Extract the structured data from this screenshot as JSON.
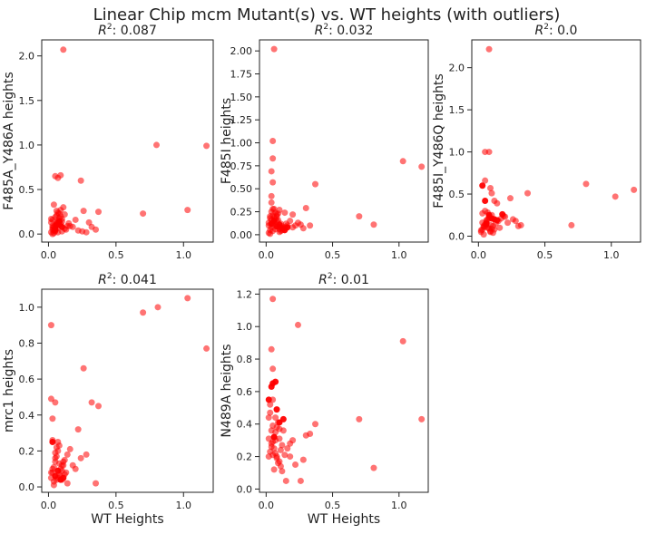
{
  "figure": {
    "suptitle": "Linear Chip mcm Mutant(s) vs. WT heights (with outliers)",
    "point_color": "#ff0000",
    "point_alpha": 0.55
  },
  "chart_data": [
    {
      "type": "scatter",
      "title_prefix": "R",
      "title_sup": "2",
      "title_value": ": 0.087",
      "xlabel": "",
      "ylabel": "F485A_Y486A heights",
      "xlim": [
        -0.05,
        1.22
      ],
      "ylim": [
        -0.09,
        2.18
      ],
      "xticks": [
        0.0,
        0.5,
        1.0
      ],
      "xtick_labels": [
        "0.0",
        "0.5",
        "1.0"
      ],
      "yticks": [
        0.0,
        0.5,
        1.0,
        1.5,
        2.0
      ],
      "ytick_labels": [
        "0.0",
        "0.5",
        "1.0",
        "1.5",
        "2.0"
      ],
      "x": [
        0.11,
        0.8,
        1.17,
        0.05,
        0.07,
        0.09,
        0.24,
        1.03,
        0.7,
        0.37,
        0.02,
        0.03,
        0.04,
        0.05,
        0.06,
        0.07,
        0.08,
        0.09,
        0.1,
        0.12,
        0.14,
        0.03,
        0.04,
        0.05,
        0.06,
        0.08,
        0.1,
        0.12,
        0.02,
        0.03,
        0.05,
        0.06,
        0.07,
        0.09,
        0.11,
        0.15,
        0.18,
        0.2,
        0.22,
        0.26,
        0.3,
        0.32,
        0.35,
        0.28,
        0.25,
        0.04,
        0.06,
        0.08,
        0.1,
        0.13,
        0.16,
        0.02,
        0.03,
        0.05,
        0.07,
        0.09,
        0.04,
        0.06,
        0.08,
        0.03,
        0.05,
        0.07
      ],
      "y": [
        2.07,
        1.0,
        0.99,
        0.65,
        0.63,
        0.66,
        0.6,
        0.27,
        0.23,
        0.25,
        0.02,
        0.05,
        0.08,
        0.1,
        0.12,
        0.15,
        0.18,
        0.2,
        0.03,
        0.06,
        0.09,
        0.0,
        0.04,
        0.07,
        0.11,
        0.14,
        0.17,
        0.22,
        0.13,
        0.16,
        0.19,
        0.21,
        0.24,
        0.27,
        0.3,
        0.12,
        0.08,
        0.16,
        0.04,
        0.26,
        0.13,
        0.08,
        0.05,
        0.02,
        0.03,
        0.01,
        0.06,
        0.1,
        0.14,
        0.05,
        0.09,
        0.17,
        0.07,
        0.03,
        0.02,
        0.11,
        0.33,
        0.26,
        0.23,
        0.09,
        0.04,
        0.13
      ],
      "dark_x": [
        0.05,
        0.06,
        0.08,
        0.1
      ],
      "dark_y": [
        0.05,
        0.1,
        0.14,
        0.08
      ]
    },
    {
      "type": "scatter",
      "title_prefix": "R",
      "title_sup": "2",
      "title_value": ": 0.032",
      "xlabel": "",
      "ylabel": "F485I heights",
      "xlim": [
        -0.05,
        1.22
      ],
      "ylim": [
        -0.08,
        2.12
      ],
      "xticks": [
        0.0,
        0.5,
        1.0
      ],
      "xtick_labels": [
        "0.0",
        "0.5",
        "1.0"
      ],
      "yticks": [
        0.0,
        0.25,
        0.5,
        0.75,
        1.0,
        1.25,
        1.5,
        1.75,
        2.0
      ],
      "ytick_labels": [
        "0.00",
        "0.25",
        "0.50",
        "0.75",
        "1.00",
        "1.25",
        "1.50",
        "1.75",
        "2.00"
      ],
      "x": [
        0.06,
        0.05,
        0.05,
        0.04,
        0.05,
        0.04,
        0.04,
        1.03,
        1.17,
        0.37,
        0.7,
        0.81,
        0.05,
        0.1,
        0.14,
        0.24,
        0.3,
        0.2,
        0.02,
        0.03,
        0.04,
        0.05,
        0.06,
        0.07,
        0.08,
        0.09,
        0.1,
        0.12,
        0.15,
        0.18,
        0.2,
        0.22,
        0.26,
        0.28,
        0.33,
        0.03,
        0.05,
        0.07,
        0.09,
        0.11,
        0.13,
        0.16,
        0.02,
        0.04,
        0.06,
        0.08,
        0.1,
        0.12,
        0.14,
        0.03,
        0.05,
        0.07,
        0.09,
        0.11,
        0.04,
        0.06,
        0.08,
        0.02,
        0.03
      ],
      "y": [
        2.02,
        1.02,
        0.83,
        0.69,
        0.57,
        0.42,
        0.35,
        0.8,
        0.74,
        0.55,
        0.2,
        0.11,
        0.28,
        0.27,
        0.24,
        0.13,
        0.29,
        0.22,
        0.02,
        0.05,
        0.08,
        0.11,
        0.14,
        0.17,
        0.2,
        0.23,
        0.06,
        0.09,
        0.12,
        0.15,
        0.08,
        0.1,
        0.11,
        0.07,
        0.1,
        0.18,
        0.21,
        0.24,
        0.16,
        0.04,
        0.07,
        0.1,
        0.13,
        0.16,
        0.19,
        0.22,
        0.03,
        0.05,
        0.08,
        0.01,
        0.04,
        0.06,
        0.09,
        0.12,
        0.25,
        0.28,
        0.15,
        0.1,
        0.2
      ],
      "dark_x": [
        0.04,
        0.06,
        0.08,
        0.1,
        0.12,
        0.14,
        0.16
      ],
      "dark_y": [
        0.12,
        0.15,
        0.09,
        0.11,
        0.07,
        0.05,
        0.08
      ]
    },
    {
      "type": "scatter",
      "title_prefix": "R",
      "title_sup": "2",
      "title_value": ": 0.0",
      "xlabel": "",
      "ylabel": "F485I_Y486Q heights",
      "xlim": [
        -0.05,
        1.22
      ],
      "ylim": [
        -0.07,
        2.33
      ],
      "xticks": [
        0.0,
        0.5,
        1.0
      ],
      "xtick_labels": [
        "0.0",
        "0.5",
        "1.0"
      ],
      "yticks": [
        0.0,
        0.5,
        1.0,
        1.5,
        2.0
      ],
      "ytick_labels": [
        "0.0",
        "0.5",
        "1.0",
        "1.5",
        "2.0"
      ],
      "x": [
        0.08,
        0.05,
        0.08,
        0.05,
        0.09,
        0.1,
        0.12,
        0.14,
        0.81,
        1.03,
        1.17,
        0.37,
        0.7,
        0.24,
        0.2,
        0.3,
        0.26,
        0.32,
        0.02,
        0.03,
        0.04,
        0.05,
        0.06,
        0.07,
        0.08,
        0.09,
        0.1,
        0.11,
        0.13,
        0.15,
        0.17,
        0.19,
        0.22,
        0.28,
        0.03,
        0.05,
        0.07,
        0.09,
        0.11,
        0.02,
        0.04,
        0.06,
        0.08,
        0.1,
        0.12,
        0.16,
        0.03,
        0.05,
        0.07,
        0.09,
        0.04,
        0.06,
        0.08
      ],
      "y": [
        2.22,
        1.0,
        1.0,
        0.66,
        0.57,
        0.51,
        0.42,
        0.39,
        0.62,
        0.47,
        0.55,
        0.51,
        0.13,
        0.45,
        0.23,
        0.12,
        0.2,
        0.13,
        0.05,
        0.08,
        0.11,
        0.14,
        0.17,
        0.2,
        0.23,
        0.06,
        0.09,
        0.12,
        0.15,
        0.18,
        0.21,
        0.24,
        0.16,
        0.18,
        0.27,
        0.3,
        0.1,
        0.13,
        0.04,
        0.07,
        0.02,
        0.19,
        0.22,
        0.25,
        0.08,
        0.1,
        0.16,
        0.11,
        0.28,
        0.05,
        0.12,
        0.14,
        0.09
      ],
      "dark_x": [
        0.03,
        0.05,
        0.08,
        0.1,
        0.12,
        0.14,
        0.18,
        0.06
      ],
      "dark_y": [
        0.6,
        0.42,
        0.25,
        0.21,
        0.2,
        0.19,
        0.26,
        0.15
      ]
    },
    {
      "type": "scatter",
      "title_prefix": "R",
      "title_sup": "2",
      "title_value": ": 0.041",
      "xlabel": "WT Heights",
      "ylabel": "mrc1 heights",
      "xlim": [
        -0.05,
        1.22
      ],
      "ylim": [
        -0.03,
        1.1
      ],
      "xticks": [
        0.0,
        0.5,
        1.0
      ],
      "xtick_labels": [
        "0.0",
        "0.5",
        "1.0"
      ],
      "yticks": [
        0.0,
        0.2,
        0.4,
        0.6,
        0.8,
        1.0
      ],
      "ytick_labels": [
        "0.0",
        "0.2",
        "0.4",
        "0.6",
        "0.8",
        "1.0"
      ],
      "x": [
        0.02,
        1.03,
        0.81,
        0.7,
        1.17,
        0.26,
        0.32,
        0.37,
        0.02,
        0.05,
        0.03,
        0.22,
        0.35,
        0.02,
        0.03,
        0.04,
        0.05,
        0.06,
        0.07,
        0.08,
        0.09,
        0.1,
        0.11,
        0.12,
        0.14,
        0.16,
        0.18,
        0.2,
        0.24,
        0.28,
        0.02,
        0.03,
        0.04,
        0.05,
        0.06,
        0.07,
        0.08,
        0.1,
        0.12,
        0.14,
        0.03,
        0.05,
        0.07,
        0.09,
        0.11,
        0.13,
        0.04,
        0.06,
        0.08,
        0.1
      ],
      "y": [
        0.9,
        1.05,
        1.0,
        0.97,
        0.77,
        0.66,
        0.47,
        0.45,
        0.49,
        0.47,
        0.38,
        0.32,
        0.02,
        0.05,
        0.08,
        0.11,
        0.14,
        0.17,
        0.2,
        0.23,
        0.06,
        0.09,
        0.12,
        0.15,
        0.18,
        0.21,
        0.12,
        0.1,
        0.16,
        0.18,
        0.08,
        0.1,
        0.03,
        0.19,
        0.22,
        0.25,
        0.13,
        0.04,
        0.07,
        0.02,
        0.26,
        0.16,
        0.05,
        0.1,
        0.14,
        0.08,
        0.01,
        0.04,
        0.07,
        0.12
      ],
      "dark_x": [
        0.03,
        0.05,
        0.07,
        0.09,
        0.11
      ],
      "dark_y": [
        0.25,
        0.06,
        0.09,
        0.04,
        0.05
      ]
    },
    {
      "type": "scatter",
      "title_prefix": "R",
      "title_sup": "2",
      "title_value": ": 0.01",
      "xlabel": "WT Heights",
      "ylabel": "N489A heights",
      "xlim": [
        -0.05,
        1.22
      ],
      "ylim": [
        -0.02,
        1.23
      ],
      "xticks": [
        0.0,
        0.5,
        1.0
      ],
      "xtick_labels": [
        "0.0",
        "0.5",
        "1.0"
      ],
      "yticks": [
        0.0,
        0.2,
        0.4,
        0.6,
        0.8,
        1.0,
        1.2
      ],
      "ytick_labels": [
        "0.0",
        "0.2",
        "0.4",
        "0.6",
        "0.8",
        "1.0",
        "1.2"
      ],
      "x": [
        0.05,
        0.24,
        0.04,
        0.05,
        1.03,
        1.17,
        0.7,
        0.81,
        0.37,
        0.26,
        0.18,
        0.2,
        0.15,
        0.33,
        0.02,
        0.03,
        0.04,
        0.05,
        0.06,
        0.07,
        0.08,
        0.09,
        0.1,
        0.11,
        0.12,
        0.14,
        0.16,
        0.18,
        0.22,
        0.28,
        0.3,
        0.02,
        0.03,
        0.04,
        0.05,
        0.06,
        0.07,
        0.08,
        0.1,
        0.12,
        0.03,
        0.05,
        0.07,
        0.09,
        0.11,
        0.13,
        0.04,
        0.06,
        0.08,
        0.1,
        0.02,
        0.05,
        0.07
      ],
      "y": [
        1.17,
        1.01,
        0.86,
        0.74,
        0.91,
        0.43,
        0.43,
        0.13,
        0.4,
        0.05,
        0.2,
        0.3,
        0.05,
        0.34,
        0.2,
        0.23,
        0.26,
        0.29,
        0.32,
        0.35,
        0.38,
        0.41,
        0.17,
        0.14,
        0.11,
        0.21,
        0.25,
        0.28,
        0.15,
        0.18,
        0.33,
        0.44,
        0.47,
        0.36,
        0.39,
        0.25,
        0.22,
        0.19,
        0.31,
        0.27,
        0.52,
        0.55,
        0.3,
        0.16,
        0.24,
        0.36,
        0.28,
        0.12,
        0.2,
        0.37,
        0.31,
        0.21,
        0.44
      ],
      "dark_x": [
        0.02,
        0.05,
        0.07,
        0.08,
        0.1,
        0.13,
        0.04,
        0.06
      ],
      "dark_y": [
        0.55,
        0.65,
        0.66,
        0.49,
        0.41,
        0.43,
        0.63,
        0.32
      ]
    }
  ]
}
